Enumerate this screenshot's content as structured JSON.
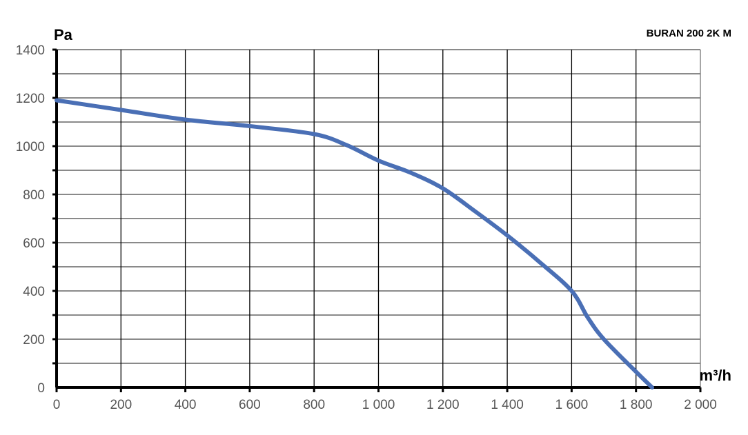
{
  "chart_data": {
    "type": "line",
    "title": "BURAN 200 2K M",
    "xlabel": "m³/h",
    "ylabel": "Pa",
    "xlim": [
      0,
      2000
    ],
    "ylim": [
      0,
      1400
    ],
    "x_ticks": [
      0,
      200,
      400,
      600,
      800,
      1000,
      1200,
      1400,
      1600,
      1800,
      2000
    ],
    "x_tick_labels": [
      "0",
      "200",
      "400",
      "600",
      "800",
      "1 000",
      "1 200",
      "1 400",
      "1 600",
      "1 800",
      "2 000"
    ],
    "y_ticks": [
      0,
      200,
      400,
      600,
      800,
      1000,
      1200,
      1400
    ],
    "y_tick_labels": [
      "0",
      "200",
      "400",
      "600",
      "800",
      "1000",
      "1200",
      "1400"
    ],
    "grid": true,
    "line_color": "#4a6fb5",
    "series": [
      {
        "x": [
          0,
          200,
          400,
          600,
          800,
          900,
          1000,
          1100,
          1200,
          1300,
          1400,
          1500,
          1600,
          1650,
          1700,
          1800,
          1850
        ],
        "y": [
          1190,
          1150,
          1110,
          1083,
          1050,
          1005,
          940,
          890,
          825,
          730,
          630,
          520,
          400,
          290,
          200,
          65,
          0
        ]
      }
    ]
  }
}
